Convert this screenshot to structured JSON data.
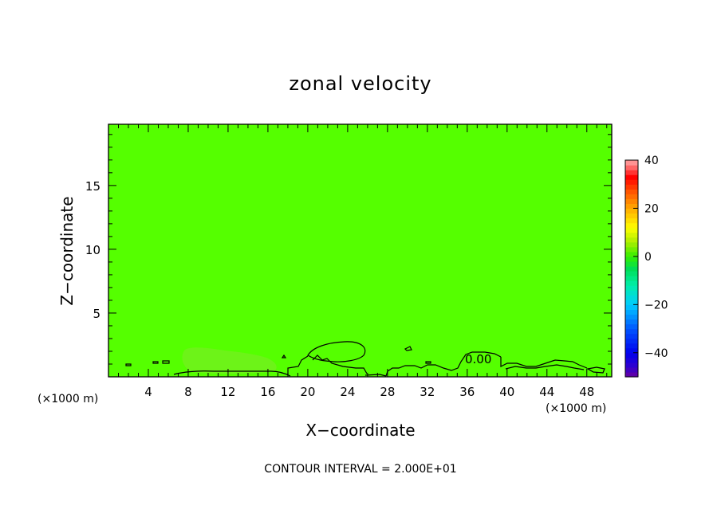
{
  "chart_data": {
    "type": "heatmap",
    "title": "zonal velocity",
    "xlabel": "X−coordinate",
    "ylabel": "Z−coordinate",
    "x_unit": "(×1000 m)",
    "xlim": [
      0,
      50.5
    ],
    "ylim": [
      0,
      19.8
    ],
    "x_ticks": [
      4,
      8,
      12,
      16,
      20,
      24,
      28,
      32,
      36,
      40,
      44,
      48
    ],
    "y_ticks": [
      5,
      10,
      15
    ],
    "background_value": 0,
    "contour_label": "0.00",
    "contour_interval_text": "CONTOUR INTERVAL = 2.000E+01",
    "colorbar": {
      "min": -50,
      "max": 40,
      "tick_values": [
        40,
        20,
        0,
        -20,
        -40
      ],
      "tick_labels": [
        "40",
        "20",
        "0",
        "−20",
        "−40"
      ]
    },
    "colors": {
      "field": "#55ff00",
      "field_light": "#77ee22",
      "contour": "#000000"
    }
  }
}
